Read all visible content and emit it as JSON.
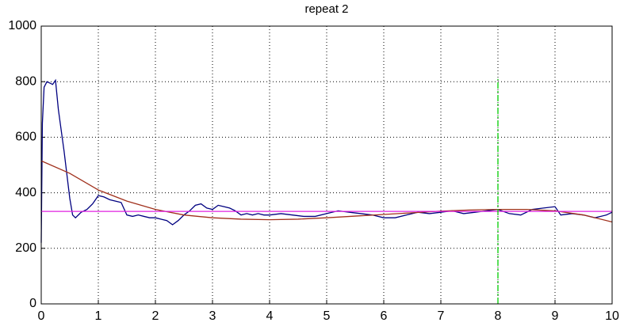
{
  "chart_data": {
    "type": "line",
    "title": "repeat 2",
    "xlim": [
      0,
      10
    ],
    "xticks": [
      0,
      1,
      2,
      3,
      4,
      5,
      6,
      7,
      8,
      9,
      10
    ],
    "ylim": [
      0,
      1000
    ],
    "yticks": [
      0,
      200,
      400,
      600,
      800,
      1000
    ],
    "grid": true,
    "series": [
      {
        "color": "#000080",
        "x": [
          0,
          0.02,
          0.05,
          0.1,
          0.2,
          0.25,
          0.3,
          0.4,
          0.5,
          0.55,
          0.6,
          0.7,
          0.8,
          0.9,
          1.0,
          1.1,
          1.2,
          1.3,
          1.4,
          1.5,
          1.6,
          1.7,
          1.8,
          1.9,
          2.0,
          2.1,
          2.2,
          2.3,
          2.4,
          2.5,
          2.6,
          2.7,
          2.8,
          2.9,
          3.0,
          3.1,
          3.2,
          3.3,
          3.4,
          3.5,
          3.6,
          3.7,
          3.8,
          3.9,
          4.0,
          4.2,
          4.4,
          4.6,
          4.8,
          5.0,
          5.2,
          5.4,
          5.6,
          5.8,
          6.0,
          6.2,
          6.4,
          6.6,
          6.8,
          7.0,
          7.2,
          7.4,
          7.6,
          7.8,
          8.0,
          8.2,
          8.4,
          8.6,
          8.8,
          9.0,
          9.1,
          9.3,
          9.5,
          9.7,
          9.9,
          10
        ],
        "values": [
          220,
          650,
          780,
          800,
          790,
          805,
          700,
          550,
          380,
          320,
          310,
          330,
          340,
          360,
          390,
          385,
          375,
          370,
          365,
          320,
          315,
          320,
          315,
          310,
          310,
          305,
          300,
          285,
          300,
          320,
          335,
          355,
          360,
          345,
          340,
          355,
          350,
          345,
          335,
          320,
          325,
          320,
          325,
          320,
          320,
          325,
          320,
          315,
          315,
          325,
          335,
          330,
          325,
          320,
          310,
          310,
          320,
          330,
          325,
          330,
          335,
          325,
          330,
          335,
          340,
          325,
          320,
          340,
          345,
          350,
          320,
          325,
          320,
          310,
          320,
          330
        ]
      },
      {
        "color": "#a0301c",
        "x": [
          0,
          0.5,
          1,
          1.5,
          2,
          2.5,
          3,
          3.5,
          4,
          4.5,
          5,
          5.5,
          6,
          6.5,
          7,
          7.5,
          8,
          8.5,
          9,
          9.5,
          10
        ],
        "values": [
          515,
          470,
          410,
          370,
          340,
          320,
          310,
          305,
          303,
          305,
          310,
          316,
          322,
          328,
          334,
          338,
          340,
          340,
          335,
          320,
          295
        ]
      },
      {
        "color": "#e020e0",
        "x": [
          0,
          10
        ],
        "values": [
          333,
          333
        ]
      },
      {
        "color": "#00cc00",
        "dash": "dashdot",
        "x": [
          8,
          8
        ],
        "values": [
          0,
          810
        ]
      }
    ]
  }
}
